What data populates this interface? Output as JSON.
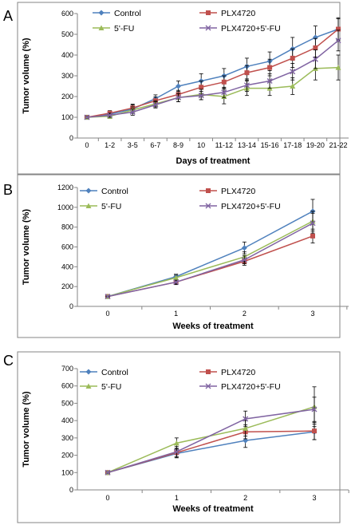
{
  "colors": {
    "control": "#4f81bd",
    "plx4720": "#c0504d",
    "fu": "#9bbb59",
    "combo": "#8064a2",
    "errorbar": "#000000",
    "frame": "#868686"
  },
  "legend_order": [
    0,
    1,
    2,
    3
  ],
  "chart_data": [
    {
      "panel": "A",
      "type": "line",
      "xlabel": "Days of treatment",
      "ylabel": "Tumor volume (%)",
      "categories": [
        "0",
        "1-2",
        "3-5",
        "6-7",
        "8-9",
        "10",
        "11-12",
        "13-14",
        "15-16",
        "17-18",
        "19-20",
        "21-22"
      ],
      "ylim": [
        0,
        600
      ],
      "yticks": [
        0,
        100,
        200,
        300,
        400,
        500,
        600
      ],
      "grid": false,
      "legend_position": "top",
      "series": [
        {
          "name": "Control",
          "marker": "diamond",
          "values": [
            100,
            115,
            140,
            190,
            250,
            275,
            300,
            345,
            370,
            430,
            485,
            525
          ],
          "errors": [
            5,
            15,
            20,
            18,
            25,
            35,
            35,
            40,
            45,
            55,
            55,
            50
          ]
        },
        {
          "name": "PLX4720",
          "marker": "square",
          "values": [
            100,
            120,
            145,
            180,
            210,
            245,
            270,
            315,
            340,
            385,
            435,
            525
          ],
          "errors": [
            5,
            12,
            18,
            18,
            20,
            30,
            30,
            35,
            40,
            45,
            45,
            55
          ]
        },
        {
          "name": "5'-FU",
          "marker": "triangle",
          "values": [
            100,
            105,
            135,
            165,
            195,
            210,
            200,
            240,
            240,
            250,
            335,
            340
          ],
          "errors": [
            5,
            10,
            15,
            15,
            20,
            25,
            35,
            35,
            35,
            40,
            55,
            60
          ]
        },
        {
          "name": "PLX4720+5'-FU",
          "marker": "cross",
          "values": [
            100,
            110,
            125,
            160,
            195,
            205,
            220,
            255,
            275,
            320,
            380,
            470
          ],
          "errors": [
            5,
            10,
            15,
            15,
            20,
            20,
            25,
            30,
            35,
            40,
            45,
            50
          ]
        }
      ]
    },
    {
      "panel": "B",
      "type": "line",
      "xlabel": "Weeks of treatment",
      "ylabel": "Tumor volume (%)",
      "categories": [
        "0",
        "1",
        "2",
        "3"
      ],
      "ylim": [
        0,
        1200
      ],
      "yticks": [
        0,
        200,
        400,
        600,
        800,
        1000,
        1200
      ],
      "grid": false,
      "legend_position": "top",
      "series": [
        {
          "name": "Control",
          "marker": "diamond",
          "values": [
            100,
            300,
            590,
            960
          ],
          "errors": [
            5,
            25,
            60,
            120
          ]
        },
        {
          "name": "PLX4720",
          "marker": "square",
          "values": [
            100,
            245,
            455,
            710
          ],
          "errors": [
            5,
            25,
            40,
            70
          ]
        },
        {
          "name": "5'-FU",
          "marker": "triangle",
          "values": [
            100,
            290,
            500,
            860
          ],
          "errors": [
            5,
            25,
            50,
            100
          ]
        },
        {
          "name": "PLX4720+5'-FU",
          "marker": "cross",
          "values": [
            100,
            245,
            470,
            840
          ],
          "errors": [
            5,
            20,
            40,
            100
          ]
        }
      ]
    },
    {
      "panel": "C",
      "type": "line",
      "xlabel": "Weeks of treatment",
      "ylabel": "Tumor volume (%)",
      "categories": [
        "0",
        "1",
        "2",
        "3"
      ],
      "ylim": [
        0,
        700
      ],
      "yticks": [
        0,
        100,
        200,
        300,
        400,
        500,
        600,
        700
      ],
      "grid": false,
      "legend_position": "top",
      "series": [
        {
          "name": "Control",
          "marker": "diamond",
          "values": [
            100,
            210,
            285,
            335
          ],
          "errors": [
            5,
            25,
            40,
            45
          ]
        },
        {
          "name": "PLX4720",
          "marker": "square",
          "values": [
            100,
            215,
            335,
            340
          ],
          "errors": [
            5,
            25,
            40,
            50
          ]
        },
        {
          "name": "5'-FU",
          "marker": "triangle",
          "values": [
            100,
            270,
            355,
            480
          ],
          "errors": [
            5,
            30,
            45,
            115
          ]
        },
        {
          "name": "PLX4720+5'-FU",
          "marker": "cross",
          "values": [
            100,
            220,
            410,
            465
          ],
          "errors": [
            5,
            30,
            45,
            70
          ]
        }
      ]
    }
  ]
}
